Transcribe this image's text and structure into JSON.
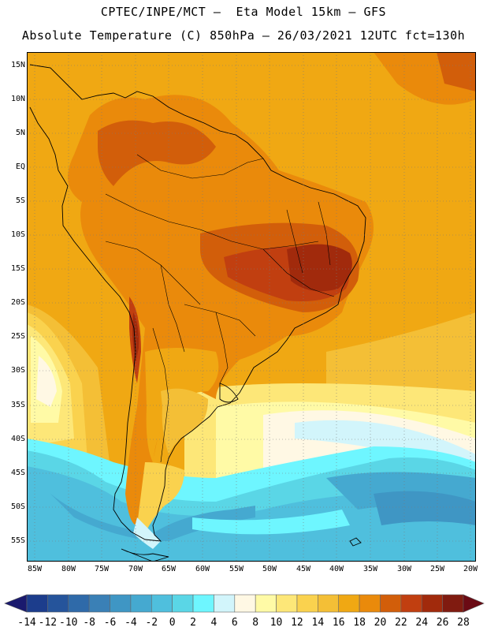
{
  "title": {
    "line1": "CPTEC/INPE/MCT –  Eta Model 15km – GFS",
    "line2": "Absolute Temperature (C) 850hPa – 26/03/2021 12UTC fct=130h"
  },
  "lat_labels": [
    "15N",
    "10N",
    "5N",
    "EQ",
    "5S",
    "10S",
    "15S",
    "20S",
    "25S",
    "30S",
    "35S",
    "40S",
    "45S",
    "50S",
    "55S"
  ],
  "lon_labels": [
    "85W",
    "80W",
    "75W",
    "70W",
    "65W",
    "60W",
    "55W",
    "50W",
    "45W",
    "40W",
    "35W",
    "30W",
    "25W",
    "20W"
  ],
  "colorbar": {
    "labels": [
      "-14",
      "-12",
      "-10",
      "-8",
      "-6",
      "-4",
      "-2",
      "0",
      "2",
      "4",
      "6",
      "8",
      "10",
      "12",
      "14",
      "16",
      "18",
      "20",
      "22",
      "24",
      "26",
      "28"
    ],
    "colors": [
      "#1c3d8c",
      "#25549b",
      "#2f6aa9",
      "#3a80b6",
      "#3f96c4",
      "#45a9d0",
      "#4fbfdd",
      "#5ad6e6",
      "#6ef6ff",
      "#d2f5fb",
      "#fff8e4",
      "#fffaa6",
      "#fde778",
      "#fad24e",
      "#f4bf36",
      "#f0a813",
      "#ea8a0b",
      "#d25e0a",
      "#c13f10",
      "#a12a0c",
      "#801b10"
    ],
    "left_arrow_color": "#1a1a6e",
    "right_arrow_color": "#6b0a14"
  }
}
